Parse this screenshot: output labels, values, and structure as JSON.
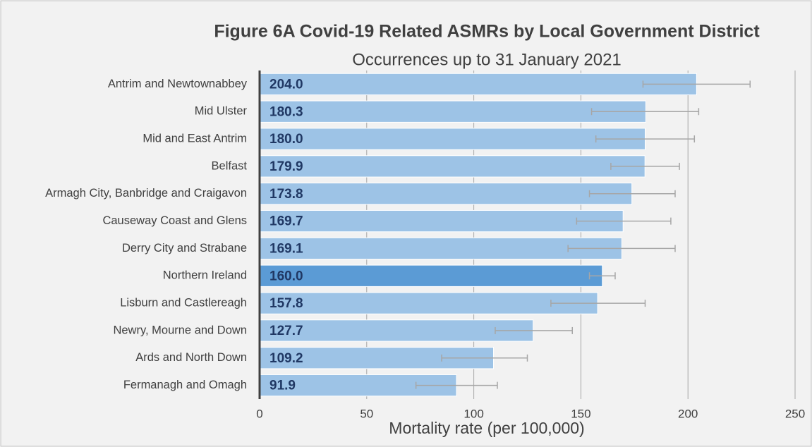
{
  "chart_data": {
    "type": "bar",
    "orientation": "horizontal",
    "title": "Figure 6A Covid-19 Related ASMRs by Local Government District",
    "subtitle": "Occurrences up to 31 January 2021",
    "x_label": "Mortality rate (per 100,000)",
    "categories": [
      "Antrim and Newtownabbey",
      "Mid Ulster",
      "Mid and East Antrim",
      "Belfast",
      "Armagh City, Banbridge and Craigavon",
      "Causeway Coast and Glens",
      "Derry City and Strabane",
      "Northern Ireland",
      "Lisburn and Castlereagh",
      "Newry, Mourne and Down",
      "Ards and North Down",
      "Fermanagh and Omagh"
    ],
    "values": [
      204.0,
      180.3,
      180.0,
      179.9,
      173.8,
      169.7,
      169.1,
      160.0,
      157.8,
      127.7,
      109.2,
      91.9
    ],
    "value_labels": [
      "204.0",
      "180.3",
      "180.0",
      "179.9",
      "173.8",
      "169.7",
      "169.1",
      "160.0",
      "157.8",
      "127.7",
      "109.2",
      "91.9"
    ],
    "error_low": [
      179,
      155,
      157,
      164,
      154,
      148,
      144,
      154,
      136,
      110,
      85,
      73
    ],
    "error_high": [
      229,
      205,
      203,
      196,
      194,
      192,
      194,
      166,
      180,
      146,
      125,
      111
    ],
    "colors": [
      "#9dc3e6",
      "#9dc3e6",
      "#9dc3e6",
      "#9dc3e6",
      "#9dc3e6",
      "#9dc3e6",
      "#9dc3e6",
      "#5b9bd5",
      "#9dc3e6",
      "#9dc3e6",
      "#9dc3e6",
      "#9dc3e6"
    ],
    "xlim": [
      0,
      250
    ],
    "xticks": [
      0,
      50,
      100,
      150,
      200,
      250
    ],
    "grid": true
  }
}
